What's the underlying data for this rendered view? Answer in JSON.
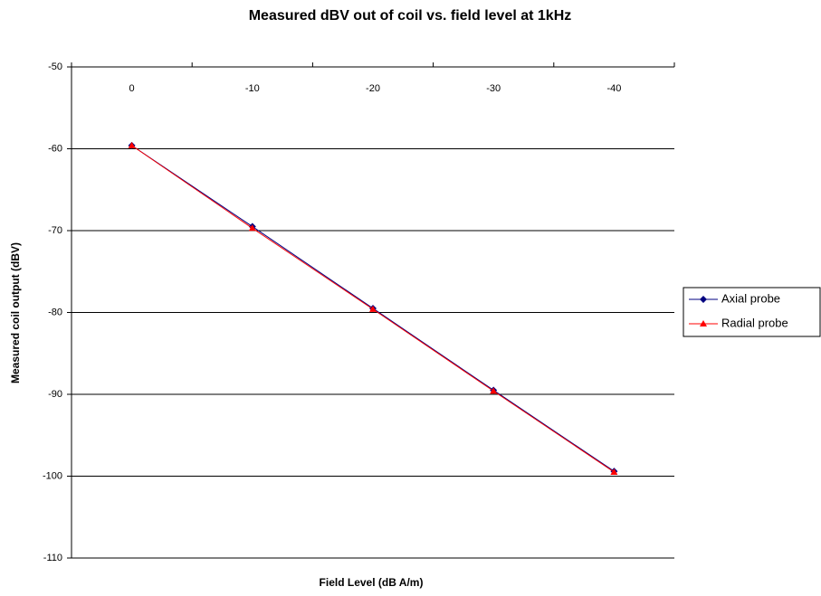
{
  "chart_data": {
    "type": "line",
    "title": "Measured dBV out of coil vs. field level at 1kHz",
    "x_label": "Field Level (dB A/m)",
    "y_label": "Measured coil output (dBV)",
    "categories": [
      "0",
      "-10",
      "-20",
      "-30",
      "-40"
    ],
    "series": [
      {
        "name": "Axial probe",
        "color": "#000080",
        "marker": "diamond",
        "values": [
          -59.6,
          -69.5,
          -79.5,
          -89.5,
          -99.4
        ]
      },
      {
        "name": "Radial probe",
        "color": "#ff0000",
        "marker": "triangle",
        "values": [
          -59.6,
          -69.7,
          -79.6,
          -89.6,
          -99.5
        ]
      }
    ],
    "ylim": [
      -110,
      -50
    ],
    "yticks": [
      -110,
      -100,
      -90,
      -80,
      -70,
      -60,
      -50
    ],
    "grid": true,
    "legend": "right"
  }
}
